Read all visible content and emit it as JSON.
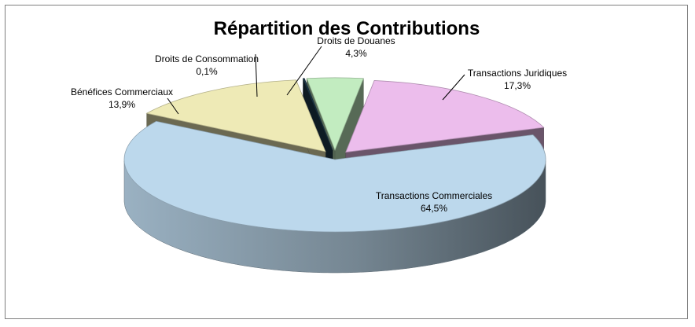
{
  "chart_data": {
    "type": "pie",
    "title": "Répartition des Contributions",
    "slices": [
      {
        "label": "Transactions Commerciales",
        "value": 64.5,
        "value_text": "64,5%",
        "color": "#bcd8ec",
        "exploded": false
      },
      {
        "label": "Bénéfices Commerciaux",
        "value": 13.9,
        "value_text": "13,9%",
        "color": "#eeeab6",
        "exploded": true
      },
      {
        "label": "Droits de Consommation",
        "value": 0.1,
        "value_text": "0,1%",
        "color": "#1f3b4d",
        "exploded": true
      },
      {
        "label": "Droits de Douanes",
        "value": 4.3,
        "value_text": "4,3%",
        "color": "#c2ecc0",
        "exploded": true
      },
      {
        "label": "Transactions Juridiques",
        "value": 17.3,
        "value_text": "17,3%",
        "color": "#ecbdec",
        "exploded": true
      }
    ],
    "style": "3d-exploded-pie",
    "legend": "none"
  }
}
